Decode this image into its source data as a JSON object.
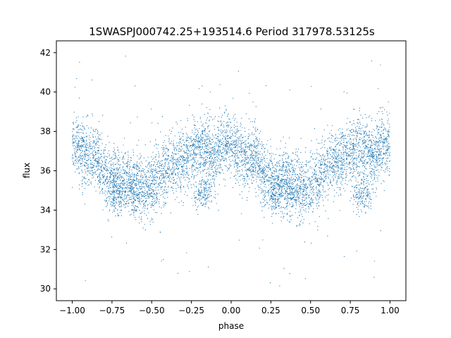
{
  "chart_data": {
    "type": "scatter",
    "title": "1SWASPJ000742.25+193514.6 Period 317978.53125s",
    "xlabel": "phase",
    "ylabel": "flux",
    "xlim": [
      -1.1,
      1.1
    ],
    "ylim": [
      29.4,
      42.6
    ],
    "xticks": [
      -1.0,
      -0.75,
      -0.5,
      -0.25,
      0.0,
      0.25,
      0.5,
      0.75,
      1.0
    ],
    "xtick_labels": [
      "−1.00",
      "−0.75",
      "−0.50",
      "−0.25",
      "0.00",
      "0.25",
      "0.50",
      "0.75",
      "1.00"
    ],
    "yticks": [
      30,
      32,
      34,
      36,
      38,
      40,
      42
    ],
    "ytick_labels": [
      "30",
      "32",
      "34",
      "36",
      "38",
      "40",
      "42"
    ],
    "series": [
      {
        "color": "#1f77b4",
        "marker_size": 0.6,
        "x_range": [
          -1.0,
          1.0
        ],
        "point_count": 6000,
        "trend": [
          {
            "x": -1.0,
            "y": 37.4
          },
          {
            "x": -0.95,
            "y": 37.0
          },
          {
            "x": -0.9,
            "y": 36.6
          },
          {
            "x": -0.85,
            "y": 36.8
          },
          {
            "x": -0.8,
            "y": 35.8
          },
          {
            "x": -0.75,
            "y": 35.4
          },
          {
            "x": -0.7,
            "y": 35.4
          },
          {
            "x": -0.65,
            "y": 35.6
          },
          {
            "x": -0.6,
            "y": 35.3
          },
          {
            "x": -0.55,
            "y": 35.1
          },
          {
            "x": -0.5,
            "y": 35.2
          },
          {
            "x": -0.45,
            "y": 35.6
          },
          {
            "x": -0.4,
            "y": 36.2
          },
          {
            "x": -0.35,
            "y": 36.4
          },
          {
            "x": -0.3,
            "y": 36.5
          },
          {
            "x": -0.25,
            "y": 36.9
          },
          {
            "x": -0.2,
            "y": 37.2
          },
          {
            "x": -0.15,
            "y": 37.1
          },
          {
            "x": -0.1,
            "y": 36.7
          },
          {
            "x": -0.05,
            "y": 37.4
          },
          {
            "x": 0.0,
            "y": 37.4
          },
          {
            "x": 0.05,
            "y": 37.0
          },
          {
            "x": 0.1,
            "y": 36.6
          },
          {
            "x": 0.15,
            "y": 36.8
          },
          {
            "x": 0.2,
            "y": 35.8
          },
          {
            "x": 0.25,
            "y": 35.4
          },
          {
            "x": 0.3,
            "y": 35.4
          },
          {
            "x": 0.35,
            "y": 35.6
          },
          {
            "x": 0.4,
            "y": 35.3
          },
          {
            "x": 0.45,
            "y": 35.1
          },
          {
            "x": 0.5,
            "y": 35.2
          },
          {
            "x": 0.55,
            "y": 35.6
          },
          {
            "x": 0.6,
            "y": 36.2
          },
          {
            "x": 0.65,
            "y": 36.4
          },
          {
            "x": 0.7,
            "y": 36.5
          },
          {
            "x": 0.75,
            "y": 36.9
          },
          {
            "x": 0.8,
            "y": 37.2
          },
          {
            "x": 0.85,
            "y": 37.1
          },
          {
            "x": 0.9,
            "y": 36.7
          },
          {
            "x": 0.95,
            "y": 37.4
          },
          {
            "x": 1.0,
            "y": 37.4
          }
        ],
        "scatter_std": 0.8,
        "secondary_branch": [
          {
            "x": -0.72,
            "y": 34.8
          },
          {
            "x": -0.62,
            "y": 34.8
          },
          {
            "x": -0.2,
            "y": 34.8
          },
          {
            "x": -0.15,
            "y": 34.9
          },
          {
            "x": 0.28,
            "y": 34.8
          },
          {
            "x": 0.38,
            "y": 34.8
          },
          {
            "x": 0.8,
            "y": 34.8
          },
          {
            "x": 0.85,
            "y": 34.9
          }
        ],
        "outlier_range": [
          30,
          42
        ]
      }
    ]
  }
}
